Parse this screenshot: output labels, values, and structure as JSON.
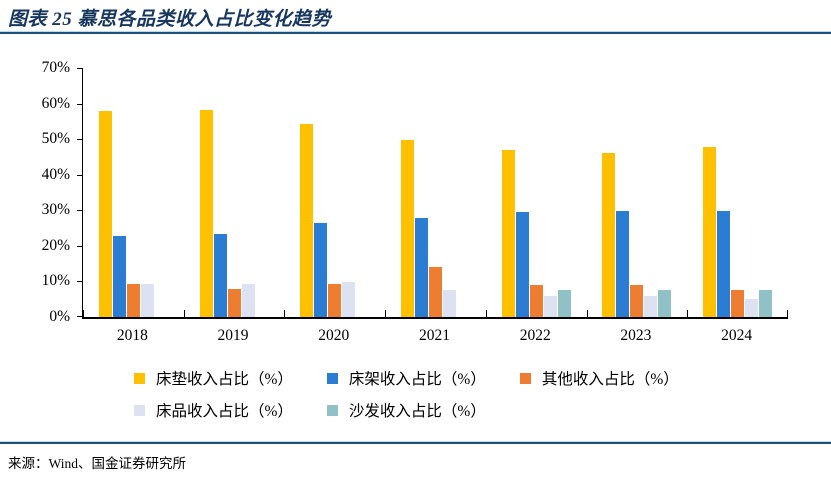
{
  "header": {
    "title": "图表 25 慕思各品类收入占比变化趋势"
  },
  "footer": {
    "source": "来源：Wind、国金证券研究所"
  },
  "colors": {
    "rule_dark": "#1F4E79",
    "rule_light": "#BDD7EE",
    "title_text": "#17375E",
    "axis": "#000000"
  },
  "chart_data": {
    "type": "bar",
    "title": "慕思各品类收入占比变化趋势",
    "categories": [
      "2018",
      "2019",
      "2020",
      "2021",
      "2022",
      "2023",
      "2024"
    ],
    "series": [
      {
        "name": "床垫收入占比（%）",
        "color": "#FFC000",
        "values": [
          57.8,
          58.2,
          54.2,
          49.9,
          47.0,
          46.2,
          47.8
        ]
      },
      {
        "name": "床架收入占比（%）",
        "color": "#2B7CD3",
        "values": [
          22.8,
          23.2,
          26.5,
          27.7,
          29.5,
          29.8,
          29.8
        ]
      },
      {
        "name": "其他收入占比（%）",
        "color": "#ED7D31",
        "values": [
          9.4,
          8.0,
          9.2,
          14.0,
          8.9,
          8.9,
          7.7
        ]
      },
      {
        "name": "床品收入占比（%）",
        "color": "#DCE2F2",
        "values": [
          9.4,
          9.4,
          9.9,
          7.6,
          5.8,
          5.8,
          5.0
        ]
      },
      {
        "name": "沙发收入占比（%）",
        "color": "#8FC1C7",
        "values": [
          0,
          0,
          0,
          0,
          7.6,
          7.5,
          7.7
        ]
      }
    ],
    "ylim": [
      0,
      70
    ],
    "ytick_step": 10,
    "ytick_labels": [
      "0%",
      "10%",
      "20%",
      "30%",
      "40%",
      "50%",
      "60%",
      "70%"
    ],
    "grid": false,
    "legend_position": "bottom",
    "legend_rows": [
      [
        0,
        1,
        2
      ],
      [
        3,
        4
      ]
    ]
  }
}
